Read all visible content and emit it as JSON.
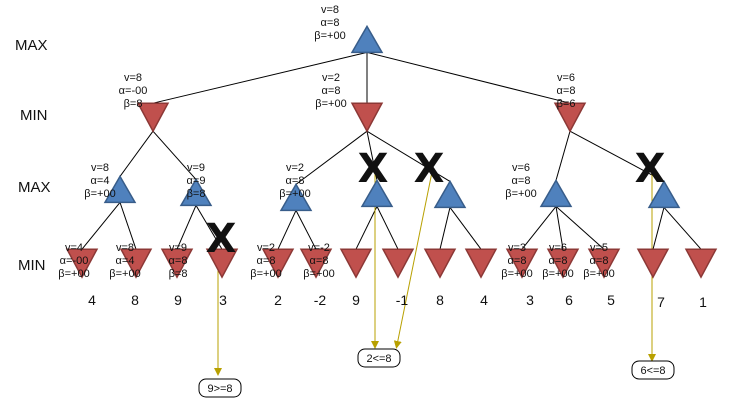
{
  "levels": [
    "MAX",
    "MIN",
    "MAX",
    "MIN"
  ],
  "colors": {
    "max_fill": "#4f81bd",
    "max_stroke": "#385d8a",
    "min_fill": "#c0504d",
    "min_stroke": "#8c3836",
    "edge": "#000000",
    "arrow": "#b8a000",
    "prune": "#000000"
  },
  "nodes": {
    "root": {
      "type": "max",
      "ann": [
        "v=8",
        "α=8",
        "β=+00"
      ]
    },
    "a": {
      "type": "min",
      "ann": [
        "v=8",
        "α=-00",
        "β=8"
      ]
    },
    "b": {
      "type": "min",
      "ann": [
        "v=2",
        "α=8",
        "β=+00"
      ]
    },
    "c": {
      "type": "min",
      "ann": [
        "v=6",
        "α=8",
        "β=6"
      ]
    },
    "a1": {
      "type": "max",
      "ann": [
        "v=8",
        "α=4",
        "β=+00"
      ]
    },
    "a2": {
      "type": "max",
      "ann": [
        "v=9",
        "α=9",
        "β=8"
      ]
    },
    "b1": {
      "type": "max",
      "ann": [
        "v=2",
        "α=8",
        "β=+00"
      ]
    },
    "b2": {
      "type": "max",
      "ann": []
    },
    "b3": {
      "type": "max",
      "ann": []
    },
    "c1": {
      "type": "max",
      "ann": [
        "v=6",
        "α=8",
        "β=+00"
      ]
    },
    "c2": {
      "type": "max",
      "ann": []
    },
    "l1": {
      "type": "min",
      "ann": [
        "v=4",
        "α=-00",
        "β=+00"
      ],
      "value": "4"
    },
    "l2": {
      "type": "min",
      "ann": [
        "v=8",
        "α=4",
        "β=+00"
      ],
      "value": "8"
    },
    "l3": {
      "type": "min",
      "ann": [
        "v=9",
        "α=8",
        "β=8"
      ],
      "value": "9"
    },
    "l4": {
      "type": "min",
      "ann": [],
      "value": "3"
    },
    "l5": {
      "type": "min",
      "ann": [
        "v=2",
        "α=8",
        "β=+00"
      ],
      "value": "2"
    },
    "l6": {
      "type": "min",
      "ann": [
        "v=-2",
        "α=8",
        "β=+00"
      ],
      "value": "-2"
    },
    "l7": {
      "type": "min",
      "ann": [],
      "value": "9"
    },
    "l8": {
      "type": "min",
      "ann": [],
      "value": "-1"
    },
    "l9": {
      "type": "min",
      "ann": [],
      "value": "8"
    },
    "l10": {
      "type": "min",
      "ann": [],
      "value": "4"
    },
    "l11": {
      "type": "min",
      "ann": [
        "v=3",
        "α=8",
        "β=+00"
      ],
      "value": "3"
    },
    "l12": {
      "type": "min",
      "ann": [
        "v=6",
        "α=8",
        "β=+00"
      ],
      "value": "6"
    },
    "l13": {
      "type": "min",
      "ann": [
        "v=5",
        "α=8",
        "β=+00"
      ],
      "value": "5"
    },
    "l14": {
      "type": "min",
      "ann": [],
      "value": "7"
    },
    "l15": {
      "type": "min",
      "ann": [],
      "value": "1"
    }
  },
  "edges": [
    [
      "root",
      "a"
    ],
    [
      "root",
      "b"
    ],
    [
      "root",
      "c"
    ],
    [
      "a",
      "a1"
    ],
    [
      "a",
      "a2"
    ],
    [
      "b",
      "b1"
    ],
    [
      "b",
      "b2"
    ],
    [
      "b",
      "b3"
    ],
    [
      "c",
      "c1"
    ],
    [
      "c",
      "c2"
    ],
    [
      "a1",
      "l1"
    ],
    [
      "a1",
      "l2"
    ],
    [
      "a2",
      "l3"
    ],
    [
      "a2",
      "l4"
    ],
    [
      "b1",
      "l5"
    ],
    [
      "b1",
      "l6"
    ],
    [
      "b2",
      "l7"
    ],
    [
      "b2",
      "l8"
    ],
    [
      "b3",
      "l9"
    ],
    [
      "b3",
      "l10"
    ],
    [
      "c1",
      "l11"
    ],
    [
      "c1",
      "l12"
    ],
    [
      "c1",
      "l13"
    ],
    [
      "c2",
      "l14"
    ],
    [
      "c2",
      "l15"
    ]
  ],
  "prune_symbol": "X",
  "prunes": [
    "l4",
    "b2",
    "b3",
    "c2"
  ],
  "notes": [
    {
      "label": "9>=8",
      "from": "l4"
    },
    {
      "label": "2<=8",
      "from": "b2"
    },
    {
      "label": "2<=8",
      "from": "b3",
      "hidden_label": true
    },
    {
      "label": "6<=8",
      "from": "c2"
    }
  ]
}
